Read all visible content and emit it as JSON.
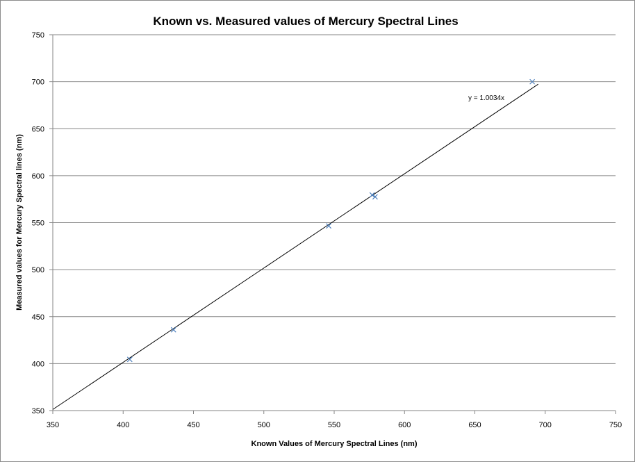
{
  "chart_data": {
    "type": "scatter",
    "title": "Known vs. Measured values of Mercury Spectral Lines",
    "xlabel": "Known Values of Mercury Spectral Lines (nm)",
    "ylabel": "Measured values for Mercury Spectral lines (nm)",
    "xlim": [
      350,
      750
    ],
    "ylim": [
      350,
      750
    ],
    "xticks": [
      350,
      400,
      450,
      500,
      550,
      600,
      650,
      700,
      750
    ],
    "yticks": [
      350,
      400,
      450,
      500,
      550,
      600,
      650,
      700,
      750
    ],
    "grid": "horizontal",
    "legend": "none",
    "series": [
      {
        "x": [
          404.7,
          435.8,
          546.1,
          577.0,
          579.1,
          690.8
        ],
        "y": [
          404.5,
          436.0,
          546.5,
          579.5,
          577.5,
          700.0
        ],
        "marker": "x",
        "color": "#4f81bd"
      }
    ],
    "trendline": {
      "equation": "y = 1.0034x",
      "slope": 1.0034,
      "x_range": [
        350,
        695
      ],
      "color": "#000000"
    }
  }
}
